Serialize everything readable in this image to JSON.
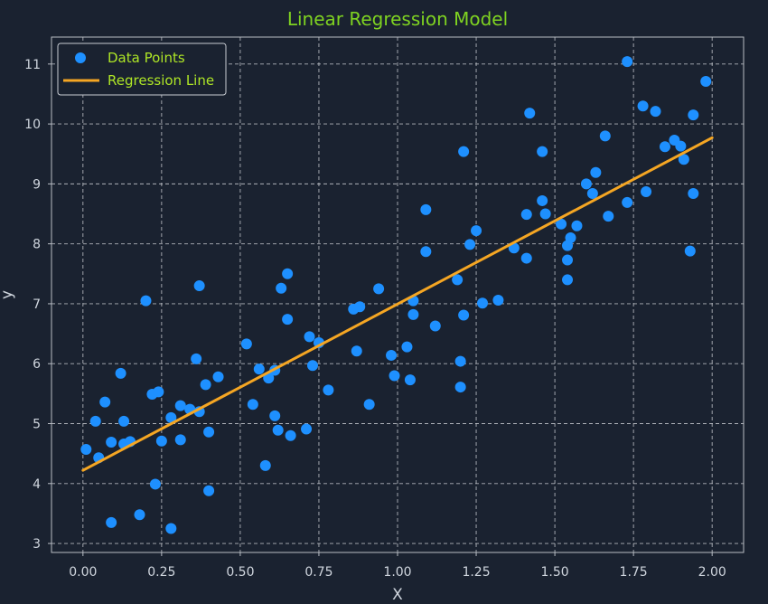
{
  "chart_data": {
    "type": "scatter",
    "title": "Linear Regression Model",
    "xlabel": "X",
    "ylabel": "y",
    "xlim": [
      -0.1,
      2.1
    ],
    "ylim": [
      2.85,
      11.45
    ],
    "xticks": [
      "0.00",
      "0.25",
      "0.50",
      "0.75",
      "1.00",
      "1.25",
      "1.50",
      "1.75",
      "2.00"
    ],
    "yticks": [
      "3",
      "4",
      "5",
      "6",
      "7",
      "8",
      "9",
      "10",
      "11"
    ],
    "grid": true,
    "legend_position": "top-left",
    "series": [
      {
        "name": "Data Points",
        "kind": "scatter",
        "color": "#1e90ff",
        "points": [
          [
            0.01,
            4.57
          ],
          [
            0.04,
            5.04
          ],
          [
            0.05,
            4.43
          ],
          [
            0.07,
            5.36
          ],
          [
            0.09,
            3.35
          ],
          [
            0.09,
            4.69
          ],
          [
            0.12,
            5.84
          ],
          [
            0.13,
            5.04
          ],
          [
            0.13,
            4.66
          ],
          [
            0.15,
            4.7
          ],
          [
            0.18,
            3.48
          ],
          [
            0.2,
            7.05
          ],
          [
            0.22,
            5.49
          ],
          [
            0.23,
            3.99
          ],
          [
            0.24,
            5.53
          ],
          [
            0.25,
            4.71
          ],
          [
            0.28,
            5.1
          ],
          [
            0.28,
            3.25
          ],
          [
            0.31,
            5.3
          ],
          [
            0.31,
            4.73
          ],
          [
            0.34,
            5.24
          ],
          [
            0.36,
            6.08
          ],
          [
            0.37,
            5.2
          ],
          [
            0.37,
            7.3
          ],
          [
            0.39,
            5.65
          ],
          [
            0.4,
            4.86
          ],
          [
            0.4,
            3.88
          ],
          [
            0.43,
            5.78
          ],
          [
            0.52,
            6.33
          ],
          [
            0.54,
            5.32
          ],
          [
            0.56,
            5.91
          ],
          [
            0.58,
            4.3
          ],
          [
            0.59,
            5.76
          ],
          [
            0.61,
            5.13
          ],
          [
            0.61,
            5.89
          ],
          [
            0.62,
            4.89
          ],
          [
            0.63,
            7.26
          ],
          [
            0.65,
            7.5
          ],
          [
            0.65,
            6.74
          ],
          [
            0.66,
            4.8
          ],
          [
            0.71,
            4.91
          ],
          [
            0.72,
            6.45
          ],
          [
            0.73,
            5.97
          ],
          [
            0.75,
            6.35
          ],
          [
            0.78,
            5.56
          ],
          [
            0.86,
            6.91
          ],
          [
            0.87,
            6.21
          ],
          [
            0.88,
            6.95
          ],
          [
            0.91,
            5.32
          ],
          [
            0.94,
            7.25
          ],
          [
            0.98,
            6.14
          ],
          [
            0.99,
            5.8
          ],
          [
            1.03,
            6.28
          ],
          [
            1.04,
            5.73
          ],
          [
            1.05,
            7.05
          ],
          [
            1.05,
            6.82
          ],
          [
            1.09,
            8.57
          ],
          [
            1.09,
            7.87
          ],
          [
            1.12,
            6.63
          ],
          [
            1.19,
            7.4
          ],
          [
            1.2,
            6.04
          ],
          [
            1.2,
            5.61
          ],
          [
            1.21,
            6.81
          ],
          [
            1.21,
            9.54
          ],
          [
            1.23,
            7.99
          ],
          [
            1.25,
            8.22
          ],
          [
            1.27,
            7.01
          ],
          [
            1.32,
            7.06
          ],
          [
            1.37,
            7.93
          ],
          [
            1.41,
            8.49
          ],
          [
            1.41,
            7.76
          ],
          [
            1.42,
            10.18
          ],
          [
            1.46,
            8.72
          ],
          [
            1.46,
            9.54
          ],
          [
            1.47,
            8.5
          ],
          [
            1.52,
            8.33
          ],
          [
            1.54,
            7.97
          ],
          [
            1.54,
            7.73
          ],
          [
            1.54,
            7.4
          ],
          [
            1.55,
            8.1
          ],
          [
            1.57,
            8.3
          ],
          [
            1.6,
            9.0
          ],
          [
            1.62,
            8.84
          ],
          [
            1.63,
            9.19
          ],
          [
            1.66,
            9.8
          ],
          [
            1.67,
            8.46
          ],
          [
            1.73,
            11.04
          ],
          [
            1.73,
            8.69
          ],
          [
            1.78,
            10.3
          ],
          [
            1.79,
            8.87
          ],
          [
            1.82,
            10.21
          ],
          [
            1.85,
            9.62
          ],
          [
            1.88,
            9.73
          ],
          [
            1.9,
            9.63
          ],
          [
            1.91,
            9.41
          ],
          [
            1.93,
            7.88
          ],
          [
            1.94,
            10.15
          ],
          [
            1.94,
            8.84
          ],
          [
            1.98,
            10.71
          ]
        ]
      },
      {
        "name": "Regression Line",
        "kind": "line",
        "color": "#f5a623",
        "points": [
          [
            0.0,
            4.22
          ],
          [
            2.0,
            9.77
          ]
        ]
      }
    ]
  },
  "colors": {
    "background": "#1a2230",
    "title": "#7fd321",
    "legend_text": "#aee626",
    "axis_text": "#d0d6de"
  }
}
